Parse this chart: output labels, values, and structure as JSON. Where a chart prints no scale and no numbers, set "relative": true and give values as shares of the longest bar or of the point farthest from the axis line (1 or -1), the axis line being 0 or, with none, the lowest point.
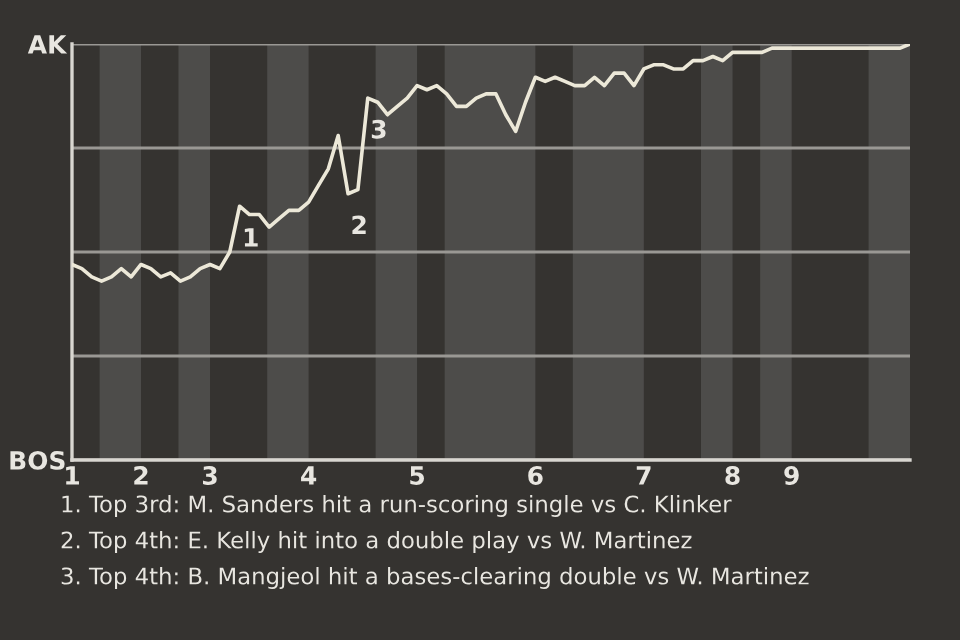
{
  "chart_data": {
    "type": "line",
    "relative": true,
    "categories": [
      "1",
      null,
      null,
      null,
      null,
      null,
      null,
      "2",
      null,
      null,
      null,
      null,
      null,
      null,
      "3",
      null,
      null,
      null,
      null,
      null,
      null,
      null,
      null,
      null,
      "4",
      null,
      null,
      null,
      null,
      null,
      null,
      null,
      null,
      null,
      null,
      "5",
      null,
      null,
      null,
      null,
      null,
      null,
      null,
      null,
      null,
      null,
      null,
      "6",
      null,
      null,
      null,
      null,
      null,
      null,
      null,
      null,
      null,
      null,
      "7",
      null,
      null,
      null,
      null,
      null,
      null,
      null,
      null,
      "8",
      null,
      null,
      null,
      null,
      null,
      "9",
      null,
      null,
      null,
      null,
      null,
      null,
      null,
      null,
      null,
      null,
      null,
      null
    ],
    "y_categories": [
      "AK",
      null,
      null,
      null,
      "BOS"
    ],
    "grid": "y",
    "series": [
      {
        "color": "#ece8d8",
        "values": [
          0.47,
          0.46,
          0.44,
          0.43,
          0.44,
          0.46,
          0.44,
          0.47,
          0.46,
          0.44,
          0.45,
          0.43,
          0.44,
          0.46,
          0.47,
          0.46,
          0.5,
          0.61,
          0.59,
          0.59,
          0.56,
          0.58,
          0.6,
          0.6,
          0.62,
          0.66,
          0.7,
          0.78,
          0.64,
          0.65,
          0.87,
          0.86,
          0.83,
          0.85,
          0.87,
          0.9,
          0.89,
          0.9,
          0.88,
          0.85,
          0.85,
          0.87,
          0.88,
          0.88,
          0.83,
          0.79,
          0.86,
          0.92,
          0.91,
          0.92,
          0.91,
          0.9,
          0.9,
          0.92,
          0.9,
          0.93,
          0.93,
          0.9,
          0.94,
          0.95,
          0.95,
          0.94,
          0.94,
          0.96,
          0.96,
          0.97,
          0.96,
          0.98,
          0.98,
          0.98,
          0.98,
          0.99,
          0.99,
          0.99,
          0.99,
          0.99,
          0.99,
          0.99,
          0.99,
          0.99,
          0.99,
          0.99,
          0.99,
          0.99,
          0.99,
          1.0
        ]
      }
    ],
    "annotations": [
      {
        "text": "1",
        "y": 0.61
      },
      {
        "text": "2",
        "y": 0.64
      },
      {
        "text": "3",
        "y": 0.87
      },
      "1. Top 3rd: M. Sanders hit a run-scoring single vs C. Klinker",
      "2. Top 4th: E. Kelly hit into a double play vs W. Martinez",
      "3. Top 4th: B. Mangjeol hit a bases-clearing double vs W. Martinez"
    ]
  }
}
